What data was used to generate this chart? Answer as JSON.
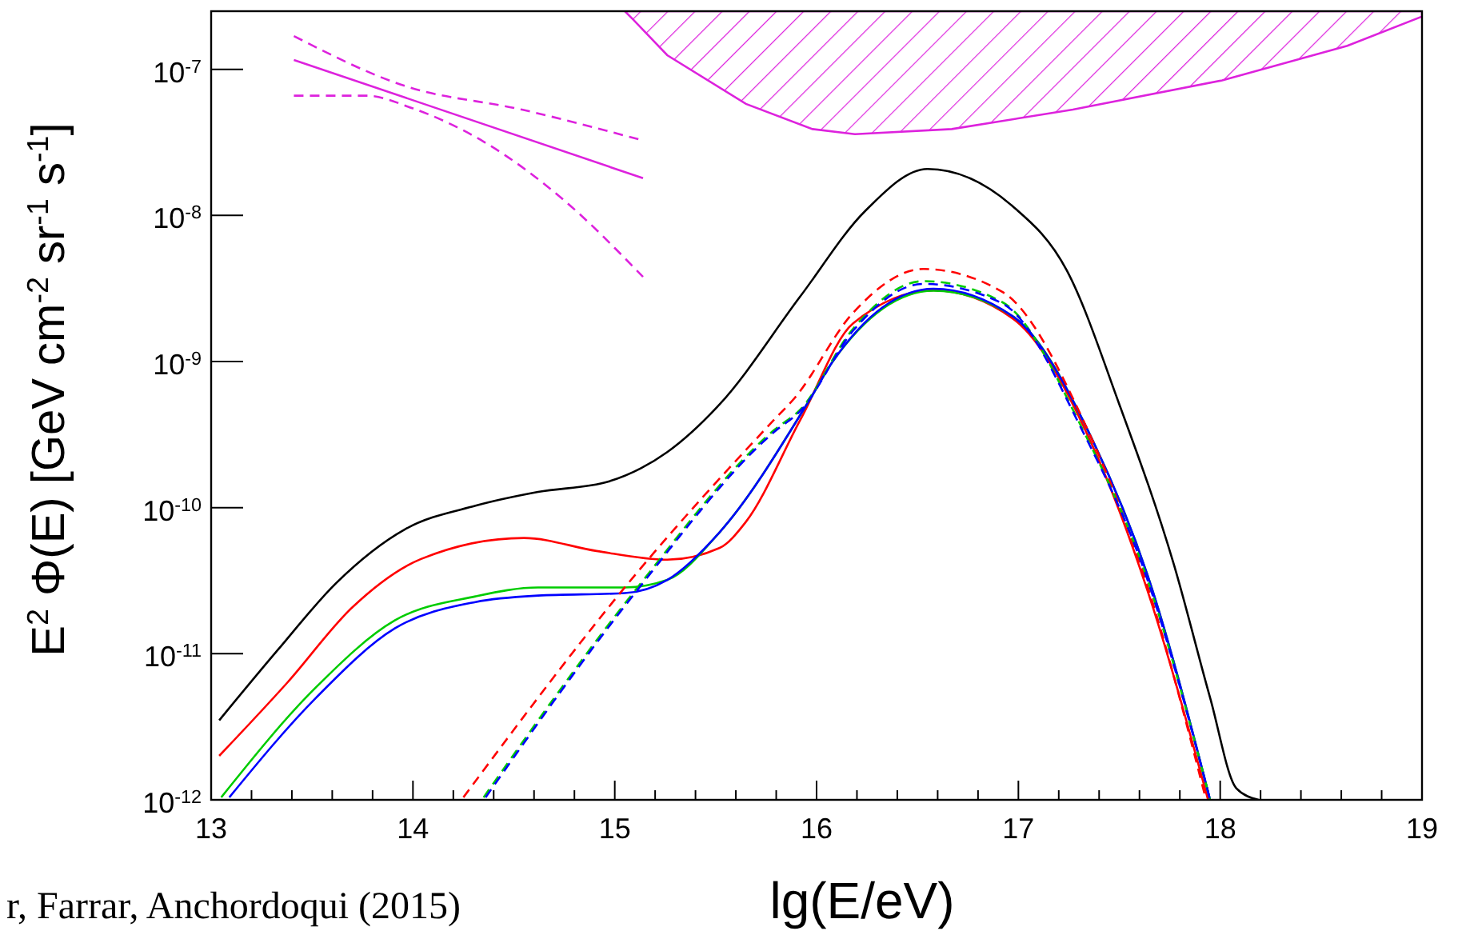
{
  "chart_data": {
    "type": "line",
    "xlabel": "lg(E/eV)",
    "ylabel": "E$^{2}$ Φ(E) [GeV cm$^{-2}$ sr$^{-1}$ s$^{-1}$]",
    "annotations": [
      "r, Farrar, Anchordoqui (2015)"
    ],
    "log": "y",
    "xlim": [
      13,
      19
    ],
    "ylim": [
      1e-12,
      2.5e-07
    ],
    "xticks": [
      13,
      {
        "value": 13.2,
        "label": null
      },
      {
        "value": 13.4,
        "label": null
      },
      {
        "value": 13.6,
        "label": null
      },
      {
        "value": 13.8,
        "label": null
      },
      14,
      {
        "value": 14.2,
        "label": null
      },
      {
        "value": 14.4,
        "label": null
      },
      {
        "value": 14.6,
        "label": null
      },
      {
        "value": 14.8,
        "label": null
      },
      15,
      {
        "value": 15.2,
        "label": null
      },
      {
        "value": 15.4,
        "label": null
      },
      {
        "value": 15.6,
        "label": null
      },
      {
        "value": 15.8,
        "label": null
      },
      16,
      {
        "value": 16.2,
        "label": null
      },
      {
        "value": 16.4,
        "label": null
      },
      {
        "value": 16.6,
        "label": null
      },
      {
        "value": 16.8,
        "label": null
      },
      17,
      {
        "value": 17.2,
        "label": null
      },
      {
        "value": 17.4,
        "label": null
      },
      {
        "value": 17.6,
        "label": null
      },
      {
        "value": 17.8,
        "label": null
      },
      18,
      {
        "value": 18.2,
        "label": null
      },
      {
        "value": 18.4,
        "label": null
      },
      {
        "value": 18.6,
        "label": null
      },
      {
        "value": 18.8,
        "label": null
      },
      19
    ],
    "yticks": [
      {
        "value": 1e-12,
        "label": "10$^{-12}$"
      },
      {
        "value": 1e-11,
        "label": "10$^{-11}$"
      },
      {
        "value": 1e-10,
        "label": "10$^{-10}$"
      },
      {
        "value": 1e-09,
        "label": "10$^{-9}$"
      },
      {
        "value": 1e-08,
        "label": "10$^{-8}$"
      },
      {
        "value": 1e-07,
        "label": "10$^{-7}$"
      }
    ],
    "series": [
      {
        "type": "area",
        "color": "#dd22dd",
        "x": [
          15.05,
          15.09,
          15.26,
          15.65,
          15.98,
          16.19,
          16.67,
          17.27,
          18.01,
          18.63,
          19.0
        ],
        "values": [
          2.5e-07,
          2.2e-07,
          1.25e-07,
          5.8e-08,
          3.9e-08,
          3.6e-08,
          3.9e-08,
          5.3e-08,
          8.4e-08,
          1.45e-07,
          2.3e-07
        ]
      },
      {
        "color": "#dd22dd",
        "line_style": "solid",
        "x": [
          13.41,
          15.14
        ],
        "values": [
          1.16e-07,
          1.8e-08
        ]
      },
      {
        "color": "#dd22dd",
        "line_style": "dashed",
        "x": [
          13.41,
          13.96,
          14.54,
          15.14
        ],
        "values": [
          1.69e-07,
          7.7e-08,
          5.3e-08,
          3.26e-08
        ]
      },
      {
        "color": "#dd22dd",
        "line_style": "dashed",
        "x": [
          13.41,
          13.77,
          14.0,
          14.35,
          14.74,
          15.14
        ],
        "values": [
          6.6e-08,
          6.6e-08,
          5.4e-08,
          3.2e-08,
          1.3e-08,
          3.8e-09
        ]
      },
      {
        "color": "#000000",
        "line_style": "solid",
        "x": [
          13.04,
          13.33,
          13.62,
          13.96,
          14.31,
          14.62,
          14.97,
          15.13,
          15.26,
          15.52,
          15.92,
          16.24,
          16.55,
          16.97,
          17.24,
          17.5,
          17.77,
          17.95,
          18.08,
          18.19
        ],
        "values": [
          3.5e-12,
          1.06e-11,
          3.05e-11,
          7.1e-11,
          1.03e-10,
          1.28e-10,
          1.51e-10,
          1.86e-10,
          2.4e-10,
          5.1e-10,
          2.8e-09,
          1.07e-08,
          2.08e-08,
          1.16e-08,
          4.2e-09,
          5.1e-10,
          4.1e-11,
          5e-12,
          1.2e-12,
          1e-12
        ]
      },
      {
        "color": "#ff0000",
        "line_style": "solid",
        "x": [
          13.04,
          13.38,
          13.7,
          14.04,
          14.55,
          14.91,
          15.26,
          15.52,
          15.65,
          15.92,
          16.18,
          16.58,
          16.97,
          17.37,
          17.64,
          17.94
        ],
        "values": [
          2e-12,
          6.4e-12,
          2.08e-11,
          4.45e-11,
          6.2e-11,
          5.05e-11,
          4.4e-11,
          5.3e-11,
          8e-11,
          4e-10,
          1.82e-09,
          3.07e-09,
          1.98e-09,
          2.6e-10,
          2.7e-11,
          1e-12
        ]
      },
      {
        "color": "#00cc00",
        "line_style": "solid",
        "x": [
          13.05,
          13.52,
          13.91,
          14.31,
          14.62,
          15.05,
          15.26,
          15.52,
          15.97,
          16.08,
          16.58,
          16.97,
          17.37,
          17.64,
          17.95
        ],
        "values": [
          1.04e-12,
          5.9e-12,
          1.69e-11,
          2.47e-11,
          2.84e-11,
          2.84e-11,
          3.2e-11,
          6.8e-11,
          5.6e-10,
          1e-09,
          3.05e-09,
          2.05e-09,
          2.85e-10,
          3.45e-11,
          1e-12
        ]
      },
      {
        "color": "#0000ff",
        "line_style": "solid",
        "x": [
          13.09,
          13.52,
          13.91,
          14.31,
          14.62,
          15.05,
          15.26,
          15.52,
          15.97,
          16.08,
          16.58,
          16.97,
          17.37,
          17.64,
          17.95
        ],
        "values": [
          1.04e-12,
          5e-12,
          1.49e-11,
          2.26e-11,
          2.5e-11,
          2.6e-11,
          3.2e-11,
          6.8e-11,
          5.6e-10,
          1e-09,
          3.15e-09,
          2.05e-09,
          2.85e-10,
          3.45e-11,
          1e-12
        ]
      },
      {
        "color": "#ff0000",
        "line_style": "dashed",
        "x": [
          14.25,
          15.1,
          15.79,
          15.89,
          16.18,
          16.53,
          16.92,
          17.32,
          17.64,
          17.93
        ],
        "values": [
          1.04e-12,
          3.45e-11,
          4e-10,
          5.6e-10,
          2.15e-09,
          4.3e-09,
          3e-09,
          4e-10,
          2.9e-11,
          1e-12
        ]
      },
      {
        "color": "#00cc00",
        "line_style": "dashed",
        "x": [
          14.35,
          15.1,
          15.79,
          15.92,
          16.18,
          16.53,
          16.92,
          17.32,
          17.64,
          17.95
        ],
        "values": [
          1.04e-12,
          2.7e-11,
          3.4e-10,
          4.7e-10,
          1.67e-09,
          3.55e-09,
          2.55e-09,
          3.4e-10,
          3.2e-11,
          1e-12
        ]
      },
      {
        "color": "#0000ff",
        "line_style": "dashed",
        "x": [
          14.36,
          15.1,
          15.79,
          15.92,
          16.18,
          16.53,
          16.92,
          17.32,
          17.64,
          17.95
        ],
        "values": [
          1.04e-12,
          2.6e-11,
          3.3e-10,
          4.6e-10,
          1.62e-09,
          3.4e-09,
          2.5e-09,
          3.3e-10,
          3.2e-11,
          1e-12
        ]
      }
    ]
  }
}
